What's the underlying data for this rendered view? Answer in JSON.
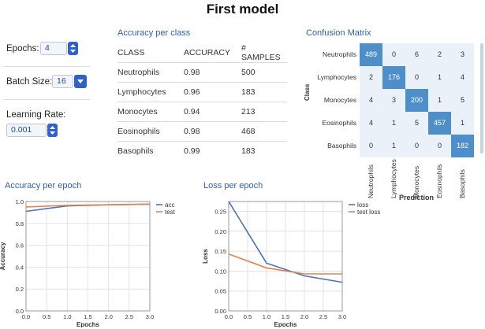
{
  "title": "First model",
  "controls": {
    "epochs": {
      "label": "Epochs:",
      "value": "4"
    },
    "batch_size": {
      "label": "Batch Size:",
      "value": "16"
    },
    "learning_rate": {
      "label": "Learning Rate:",
      "value": "0.001"
    }
  },
  "accuracy_table": {
    "title": "Accuracy per class",
    "headers": [
      "CLASS",
      "ACCURACY",
      "# SAMPLES"
    ],
    "rows": [
      [
        "Neutrophils",
        "0.98",
        "500"
      ],
      [
        "Lymphocytes",
        "0.96",
        "183"
      ],
      [
        "Monocytes",
        "0.94",
        "213"
      ],
      [
        "Eosinophils",
        "0.98",
        "468"
      ],
      [
        "Basophils",
        "0.99",
        "183"
      ]
    ]
  },
  "confusion_matrix": {
    "title": "Confusion Matrix",
    "ylabel": "Class",
    "xlabel": "Prediction",
    "classes": [
      "Neutrophils",
      "Lymphocytes",
      "Monocytes",
      "Eosinophils",
      "Basophils"
    ],
    "matrix": [
      [
        489,
        0,
        6,
        2,
        3
      ],
      [
        2,
        176,
        0,
        1,
        4
      ],
      [
        4,
        3,
        200,
        1,
        5
      ],
      [
        4,
        1,
        5,
        457,
        1
      ],
      [
        0,
        1,
        0,
        0,
        182
      ]
    ],
    "high_color": "#4f8fc9",
    "low_color": "#eaf1f8"
  },
  "chart_data": [
    {
      "type": "line",
      "title": "Accuracy per epoch",
      "xlabel": "Epochs",
      "ylabel": "Accuracy",
      "x": [
        0,
        1,
        2,
        3
      ],
      "xlim": [
        0,
        3
      ],
      "ylim": [
        0,
        1
      ],
      "xticks": [
        "0.0",
        "0.5",
        "1.0",
        "1.5",
        "2.0",
        "2.5",
        "3.0"
      ],
      "yticks": [
        "0.0",
        "0.2",
        "0.4",
        "0.6",
        "0.8",
        "1.0"
      ],
      "series": [
        {
          "name": "acc",
          "color": "#4c72b0",
          "values": [
            0.91,
            0.96,
            0.97,
            0.975
          ]
        },
        {
          "name": "test",
          "color": "#dd8452",
          "values": [
            0.95,
            0.965,
            0.97,
            0.975
          ]
        }
      ],
      "legend": "top-right",
      "grid": true
    },
    {
      "type": "line",
      "title": "Loss per epoch",
      "xlabel": "Epochs",
      "ylabel": "Loss",
      "x": [
        0,
        1,
        2,
        3
      ],
      "xlim": [
        0,
        3
      ],
      "ylim": [
        0,
        0.275
      ],
      "xticks": [
        "0.0",
        "0.5",
        "1.0",
        "1.5",
        "2.0",
        "2.5",
        "3.0"
      ],
      "yticks": [
        "0.00",
        "0.05",
        "0.10",
        "0.15",
        "0.20",
        "0.25"
      ],
      "series": [
        {
          "name": "loss",
          "color": "#4c72b0",
          "values": [
            0.275,
            0.12,
            0.088,
            0.072
          ]
        },
        {
          "name": "test loss",
          "color": "#dd8452",
          "values": [
            0.143,
            0.108,
            0.093,
            0.093
          ]
        }
      ],
      "legend": "top-right",
      "grid": true
    }
  ]
}
